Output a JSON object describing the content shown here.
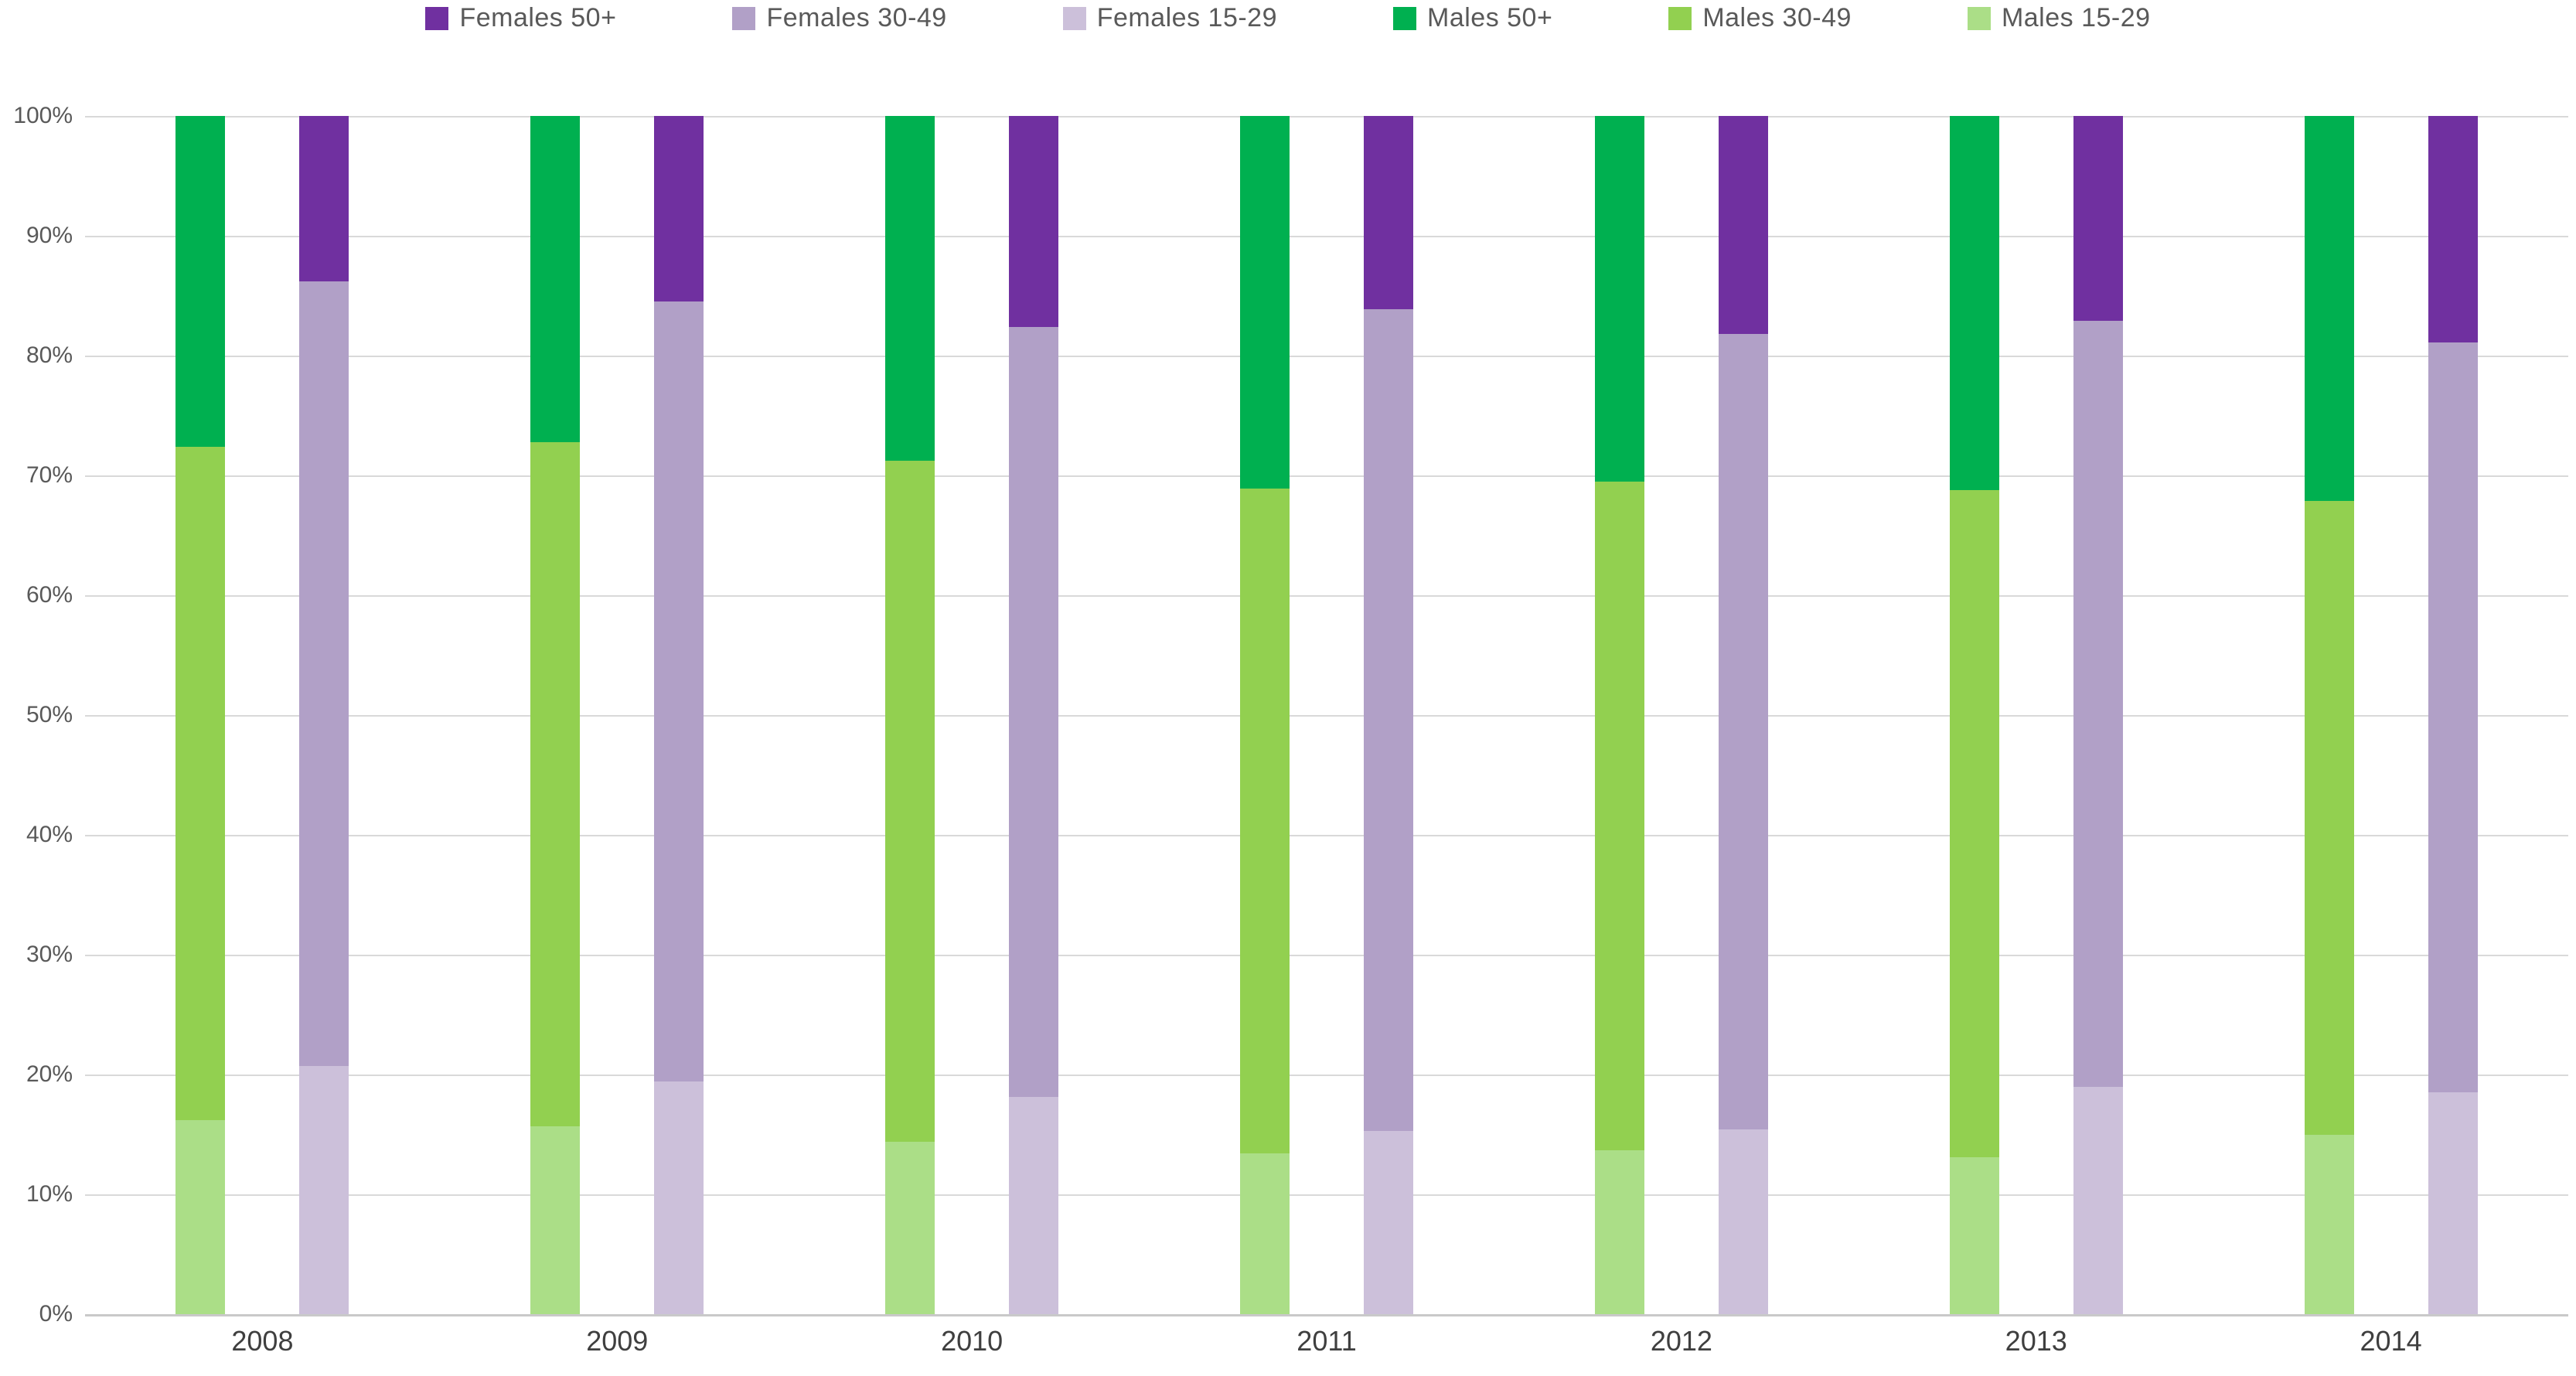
{
  "chart_data": {
    "type": "bar",
    "stacked": true,
    "unit": "percent",
    "title": "",
    "xlabel": "",
    "ylabel": "",
    "legend_position": "top",
    "grid": true,
    "categories": [
      "2008",
      "2009",
      "2010",
      "2011",
      "2012",
      "2013",
      "2014"
    ],
    "y_axis": {
      "min": 0,
      "max": 100,
      "tick_step": 10,
      "tick_labels": [
        "0%",
        "10%",
        "20%",
        "30%",
        "40%",
        "50%",
        "60%",
        "70%",
        "80%",
        "90%",
        "100%"
      ]
    },
    "legend_order": [
      "Females 50+",
      "Females 30-49",
      "Females 15-29",
      "Males 50+",
      "Males 30-49",
      "Males 15-29"
    ],
    "series": [
      {
        "name": "Females 50+",
        "color": "#7030A0",
        "values": [
          13.8,
          15.5,
          17.6,
          16.1,
          18.2,
          17.1,
          18.9
        ]
      },
      {
        "name": "Females 30-49",
        "color": "#B1A0C7",
        "values": [
          65.5,
          65.1,
          64.3,
          68.6,
          66.4,
          63.9,
          62.6
        ]
      },
      {
        "name": "Females 15-29",
        "color": "#CCC0DA",
        "values": [
          20.7,
          19.4,
          18.1,
          15.3,
          15.4,
          19.0,
          18.5
        ]
      },
      {
        "name": "Males 50+",
        "color": "#00B050",
        "values": [
          27.6,
          27.2,
          28.8,
          31.1,
          30.5,
          31.2,
          32.1
        ]
      },
      {
        "name": "Males 30-49",
        "color": "#92D050",
        "values": [
          56.2,
          57.1,
          56.8,
          55.5,
          55.8,
          55.7,
          52.9
        ]
      },
      {
        "name": "Males 15-29",
        "color": "#ABDE87",
        "values": [
          16.2,
          15.7,
          14.4,
          13.4,
          13.7,
          13.1,
          15.0
        ]
      }
    ],
    "bars_per_category": [
      {
        "name": "males-bar",
        "stack_bottom_to_top": [
          "Males 15-29",
          "Males 30-49",
          "Males 50+"
        ]
      },
      {
        "name": "females-bar",
        "stack_bottom_to_top": [
          "Females 15-29",
          "Females 30-49",
          "Females 50+"
        ]
      }
    ],
    "colors": {
      "gridline": "#D9D9D9",
      "axis_line": "#C9C9C9",
      "tick_text": "#595959",
      "category_text": "#3F3F3F",
      "background": "#FFFFFF"
    }
  }
}
